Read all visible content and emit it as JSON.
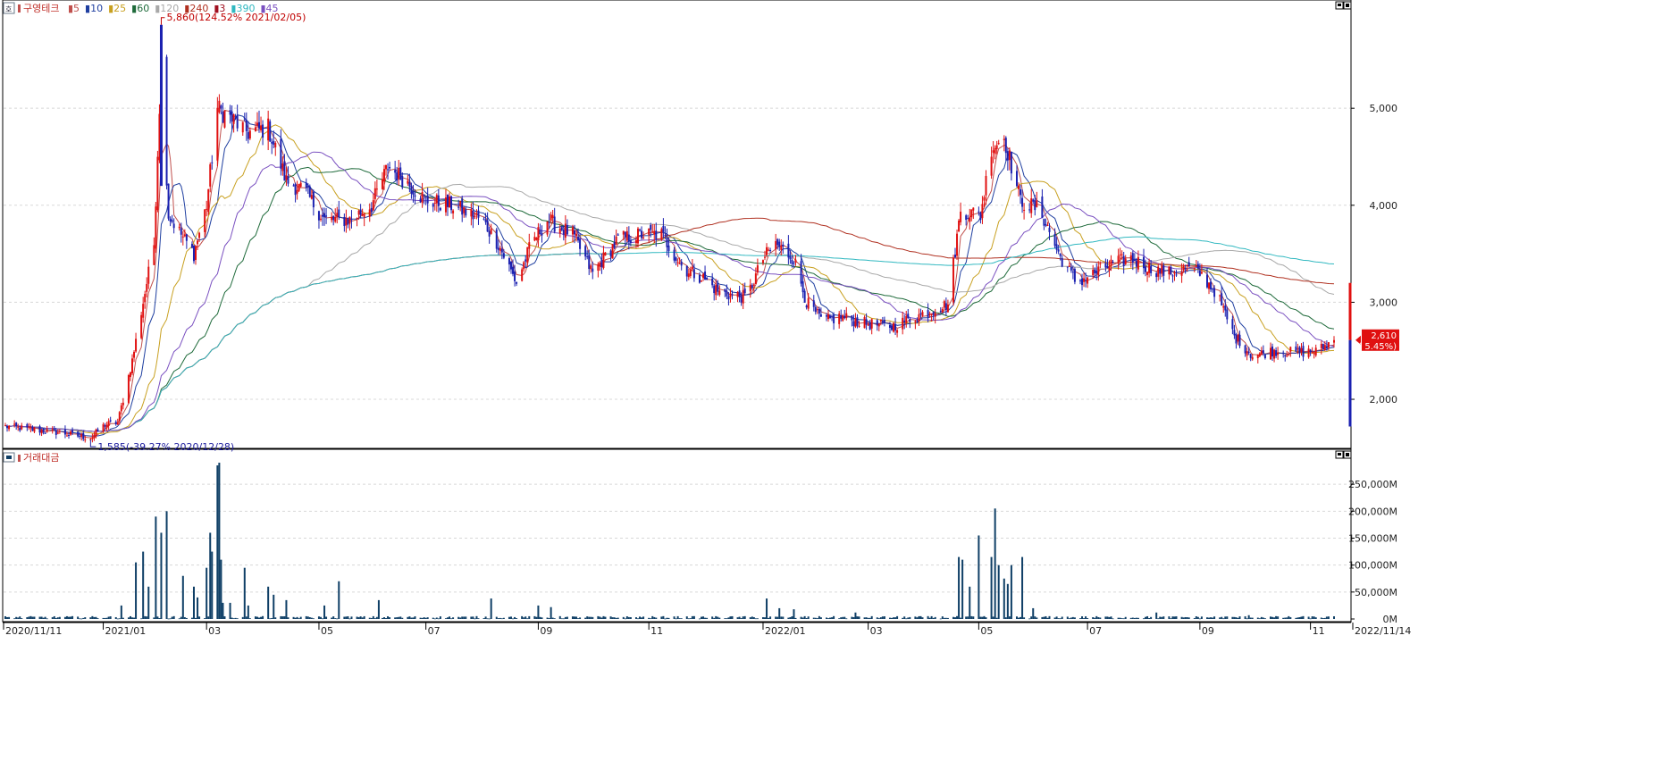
{
  "price_panel": {
    "legend": {
      "label": "구영테크",
      "ma_items": [
        {
          "label": "5",
          "color": "#c0504d"
        },
        {
          "label": "10",
          "color": "#1f3fa0"
        },
        {
          "label": "25",
          "color": "#c8a020"
        },
        {
          "label": "60",
          "color": "#1e6a3a"
        },
        {
          "label": "120",
          "color": "#a8a8a8"
        },
        {
          "label": "240",
          "color": "#b03020"
        },
        {
          "label": "3",
          "color": "#a01020"
        },
        {
          "label": "390",
          "color": "#30b8c0"
        },
        {
          "label": "45",
          "color": "#7a50c0"
        }
      ]
    },
    "high_annotation": "5,860(124.52% 2021/02/05)",
    "low_annotation": "1,585(-39.27% 2020/12/28)",
    "current_price": "2,610",
    "current_change": "( 5.45%)",
    "axis_ticks": [
      "5,000",
      "4,000",
      "3,000",
      "2,000"
    ]
  },
  "volume_panel": {
    "legend": {
      "label": "거래대금"
    },
    "axis_ticks": [
      "250,000M",
      "200,000M",
      "150,000M",
      "100,000M",
      "50,000M",
      "0M"
    ]
  },
  "x_axis": {
    "labels": [
      "2020/11/11",
      "2021/01",
      "03",
      "05",
      "07",
      "09",
      "11",
      "2022/01",
      "03",
      "05",
      "07",
      "09",
      "11",
      "2022/11/14"
    ]
  },
  "colors": {
    "up": "#e01010",
    "down": "#1a20b0",
    "volume": "#0f3f66",
    "grid": "#d8d8d8"
  },
  "chart_data": [
    {
      "type": "candlestick",
      "title": "",
      "series_name": "구영테크",
      "x_range": [
        "2020-11-11",
        "2022-11-14"
      ],
      "ylim": [
        1540,
        5950
      ],
      "y_ticks": [
        2000,
        3000,
        4000,
        5000
      ],
      "grid": true,
      "moving_averages": [
        5,
        10,
        25,
        60,
        120,
        240,
        3,
        390,
        45
      ],
      "price_path": [
        [
          "2020-11-11",
          1720
        ],
        [
          "2020-12-10",
          1660
        ],
        [
          "2020-12-28",
          1600
        ],
        [
          "2021-01-05",
          1740
        ],
        [
          "2021-01-12",
          1760
        ],
        [
          "2021-01-20",
          2400
        ],
        [
          "2021-01-26",
          3000
        ],
        [
          "2021-02-01",
          3600
        ],
        [
          "2021-02-05",
          5500
        ],
        [
          "2021-02-09",
          3900
        ],
        [
          "2021-02-16",
          3700
        ],
        [
          "2021-02-23",
          3500
        ],
        [
          "2021-03-02",
          4000
        ],
        [
          "2021-03-08",
          5000
        ],
        [
          "2021-03-15",
          4900
        ],
        [
          "2021-03-25",
          4750
        ],
        [
          "2021-04-05",
          4800
        ],
        [
          "2021-04-15",
          4250
        ],
        [
          "2021-04-25",
          4150
        ],
        [
          "2021-05-06",
          3850
        ],
        [
          "2021-05-20",
          3850
        ],
        [
          "2021-06-01",
          4000
        ],
        [
          "2021-06-10",
          4400
        ],
        [
          "2021-06-20",
          4250
        ],
        [
          "2021-07-01",
          4050
        ],
        [
          "2021-07-15",
          4000
        ],
        [
          "2021-08-01",
          3850
        ],
        [
          "2021-08-10",
          3600
        ],
        [
          "2021-08-20",
          3200
        ],
        [
          "2021-08-28",
          3600
        ],
        [
          "2021-09-06",
          3850
        ],
        [
          "2021-09-20",
          3700
        ],
        [
          "2021-10-01",
          3300
        ],
        [
          "2021-10-15",
          3650
        ],
        [
          "2021-10-28",
          3700
        ],
        [
          "2021-11-08",
          3700
        ],
        [
          "2021-11-20",
          3350
        ],
        [
          "2021-12-01",
          3250
        ],
        [
          "2021-12-10",
          3100
        ],
        [
          "2021-12-25",
          3050
        ],
        [
          "2022-01-03",
          3450
        ],
        [
          "2022-01-10",
          3600
        ],
        [
          "2022-01-20",
          3450
        ],
        [
          "2022-01-27",
          3000
        ],
        [
          "2022-02-05",
          2800
        ],
        [
          "2022-02-15",
          2850
        ],
        [
          "2022-03-01",
          2780
        ],
        [
          "2022-03-15",
          2750
        ],
        [
          "2022-04-01",
          2880
        ],
        [
          "2022-04-15",
          2980
        ],
        [
          "2022-04-22",
          3950
        ],
        [
          "2022-05-03",
          3900
        ],
        [
          "2022-05-09",
          4600
        ],
        [
          "2022-05-16",
          4700
        ],
        [
          "2022-05-25",
          4050
        ],
        [
          "2022-06-05",
          3950
        ],
        [
          "2022-06-15",
          3500
        ],
        [
          "2022-06-25",
          3200
        ],
        [
          "2022-07-05",
          3300
        ],
        [
          "2022-07-15",
          3400
        ],
        [
          "2022-07-25",
          3450
        ],
        [
          "2022-08-05",
          3350
        ],
        [
          "2022-08-15",
          3300
        ],
        [
          "2022-08-25",
          3350
        ],
        [
          "2022-09-01",
          3300
        ],
        [
          "2022-09-10",
          3100
        ],
        [
          "2022-09-20",
          2650
        ],
        [
          "2022-09-30",
          2450
        ],
        [
          "2022-10-12",
          2500
        ],
        [
          "2022-10-25",
          2480
        ],
        [
          "2022-11-05",
          2500
        ],
        [
          "2022-11-14",
          2610
        ]
      ],
      "high": {
        "date": "2021-02-05",
        "value": 5860,
        "change_pct": 124.52
      },
      "low": {
        "date": "2020-12-28",
        "value": 1585,
        "change_pct": -39.27
      },
      "last": {
        "date": "2022-11-14",
        "value": 2610,
        "change_pct": 5.45
      }
    },
    {
      "type": "bar",
      "title": "",
      "series_name": "거래대금",
      "unit": "M",
      "ylim": [
        0,
        295000
      ],
      "y_ticks": [
        0,
        50000,
        100000,
        150000,
        200000,
        250000
      ],
      "grid": true,
      "spikes": [
        [
          "2021-01-14",
          25000
        ],
        [
          "2021-01-22",
          105000
        ],
        [
          "2021-01-26",
          125000
        ],
        [
          "2021-01-29",
          60000
        ],
        [
          "2021-02-02",
          190000
        ],
        [
          "2021-02-05",
          160000
        ],
        [
          "2021-02-08",
          200000
        ],
        [
          "2021-02-17",
          80000
        ],
        [
          "2021-02-23",
          60000
        ],
        [
          "2021-02-25",
          40000
        ],
        [
          "2021-03-02",
          95000
        ],
        [
          "2021-03-04",
          160000
        ],
        [
          "2021-03-05",
          125000
        ],
        [
          "2021-03-08",
          285000
        ],
        [
          "2021-03-09",
          290000
        ],
        [
          "2021-03-10",
          110000
        ],
        [
          "2021-03-11",
          30000
        ],
        [
          "2021-03-15",
          30000
        ],
        [
          "2021-03-23",
          95000
        ],
        [
          "2021-03-25",
          25000
        ],
        [
          "2021-04-05",
          60000
        ],
        [
          "2021-04-08",
          45000
        ],
        [
          "2021-04-15",
          35000
        ],
        [
          "2021-05-06",
          25000
        ],
        [
          "2021-05-14",
          70000
        ],
        [
          "2021-06-05",
          35000
        ],
        [
          "2021-08-06",
          38000
        ],
        [
          "2021-09-01",
          25000
        ],
        [
          "2021-09-08",
          22000
        ],
        [
          "2022-01-05",
          38000
        ],
        [
          "2022-01-12",
          20000
        ],
        [
          "2022-01-20",
          18000
        ],
        [
          "2022-02-23",
          12000
        ],
        [
          "2022-04-21",
          115000
        ],
        [
          "2022-04-23",
          110000
        ],
        [
          "2022-04-27",
          60000
        ],
        [
          "2022-05-02",
          155000
        ],
        [
          "2022-05-09",
          115000
        ],
        [
          "2022-05-11",
          205000
        ],
        [
          "2022-05-13",
          100000
        ],
        [
          "2022-05-16",
          75000
        ],
        [
          "2022-05-18",
          65000
        ],
        [
          "2022-05-20",
          100000
        ],
        [
          "2022-05-26",
          115000
        ],
        [
          "2022-06-01",
          20000
        ],
        [
          "2022-08-08",
          12000
        ],
        [
          "2022-09-28",
          7000
        ]
      ]
    }
  ]
}
